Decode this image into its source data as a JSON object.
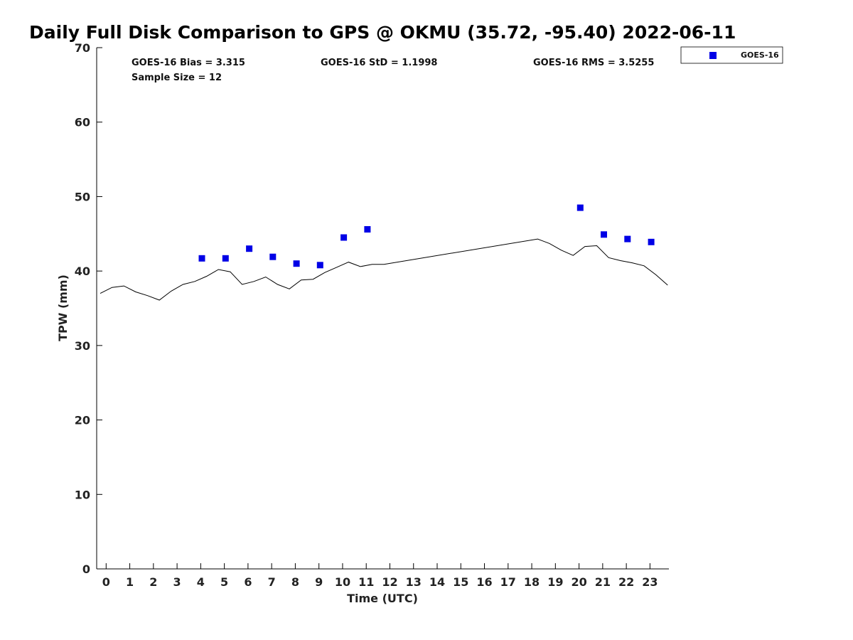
{
  "colors": {
    "goes": "#0000e6",
    "gps_line": "#000000",
    "axis": "#000000"
  },
  "stats": {
    "bias": "GOES-16 Bias = 3.315",
    "std": "GOES-16 StD = 1.1998",
    "rms": "GOES-16 RMS = 3.5255",
    "sample": "Sample Size = 12"
  },
  "chart_data": {
    "type": "scatter",
    "title": "Daily Full Disk Comparison to GPS @ OKMU (35.72, -95.40) 2022-06-11",
    "xlabel": "Time (UTC)",
    "ylabel": "TPW (mm)",
    "xlim": [
      -0.4,
      23.8
    ],
    "ylim": [
      0,
      70
    ],
    "xticks": [
      0,
      1,
      2,
      3,
      4,
      5,
      6,
      7,
      8,
      9,
      10,
      11,
      12,
      13,
      14,
      15,
      16,
      17,
      18,
      19,
      20,
      21,
      22,
      23
    ],
    "yticks": [
      0,
      10,
      20,
      30,
      40,
      50,
      60,
      70
    ],
    "legend_position": "outside-top-right",
    "grid": false,
    "series": [
      {
        "name": "GOES-16",
        "kind": "scatter",
        "marker": "square",
        "x": [
          4.05,
          5.05,
          6.05,
          7.05,
          8.05,
          9.05,
          10.05,
          11.05,
          20.05,
          21.05,
          22.05,
          23.05
        ],
        "y": [
          41.7,
          41.7,
          43.0,
          41.9,
          41.0,
          40.8,
          44.5,
          45.6,
          48.5,
          44.9,
          44.3,
          43.9
        ]
      },
      {
        "kind": "line",
        "x": [
          -0.25,
          0.25,
          0.75,
          1.25,
          1.75,
          2.25,
          2.75,
          3.25,
          3.75,
          4.25,
          4.75,
          5.25,
          5.75,
          6.25,
          6.75,
          7.25,
          7.75,
          8.25,
          8.75,
          9.25,
          9.75,
          10.25,
          10.75,
          11.25,
          11.75,
          18.25,
          18.75,
          19.25,
          19.75,
          20.25,
          20.75,
          21.25,
          21.75,
          22.25,
          22.75,
          23.25,
          23.75
        ],
        "y": [
          37.0,
          37.8,
          38.0,
          37.2,
          36.7,
          36.1,
          37.3,
          38.2,
          38.6,
          39.3,
          40.2,
          39.9,
          38.2,
          38.6,
          39.2,
          38.2,
          37.6,
          38.8,
          38.9,
          39.8,
          40.5,
          41.2,
          40.6,
          40.9,
          40.9,
          44.3,
          43.7,
          42.8,
          42.1,
          43.3,
          43.4,
          41.8,
          41.4,
          41.1,
          40.7,
          39.5,
          38.1
        ]
      }
    ]
  }
}
